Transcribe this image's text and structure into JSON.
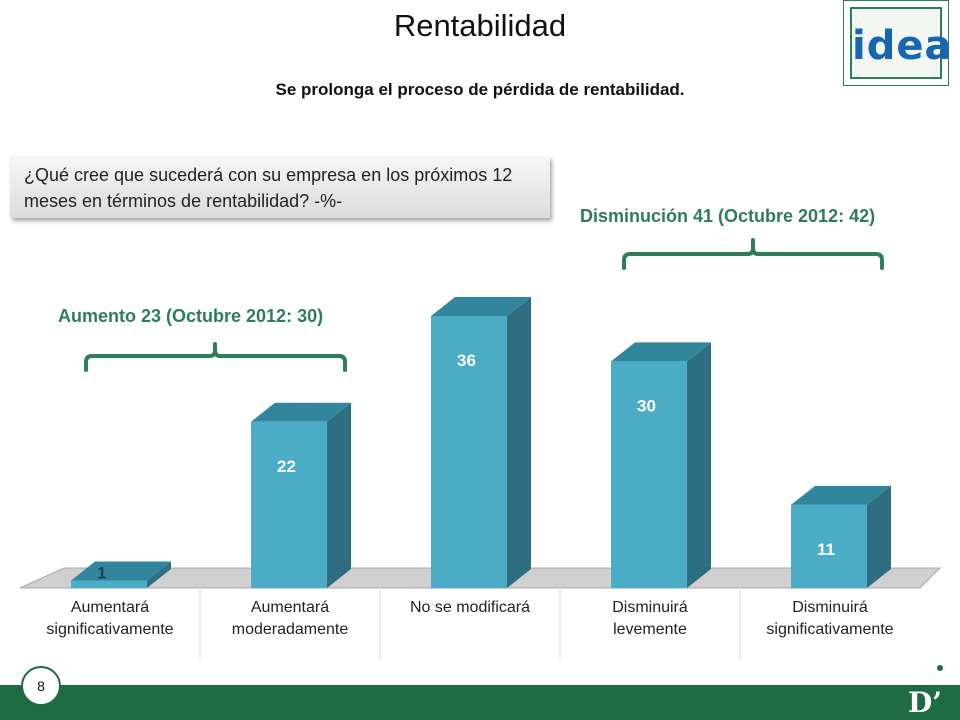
{
  "header": {
    "title": "Rentabilidad",
    "subtitle": "Se prolonga el proceso de pérdida de rentabilidad.",
    "logo_text": "idea"
  },
  "question": "¿Qué cree que sucederá con su empresa en los próximos 12 meses en términos de rentabilidad? -%-",
  "groups": {
    "increase_label": "Aumento 23 (Octubre 2012: 30)",
    "decrease_label": "Disminución 41 (Octubre 2012: 42)"
  },
  "footer": {
    "page_number": "8",
    "brand_mark": "D’"
  },
  "colors": {
    "bar_front": "#4bacc6",
    "bar_top": "#31859c",
    "bar_side": "#2e6e80",
    "accent": "#2e7d5a",
    "footer": "#1f6b43"
  },
  "chart_data": {
    "type": "bar",
    "title": "",
    "xlabel": "",
    "ylabel": "",
    "categories": [
      [
        "Aumentará",
        "significativamente"
      ],
      [
        "Aumentará",
        "moderadamente"
      ],
      [
        "No se modificará"
      ],
      [
        "Disminuirá",
        "levemente"
      ],
      [
        "Disminuirá",
        "significativamente"
      ]
    ],
    "values": [
      1,
      22,
      36,
      30,
      11
    ],
    "ylim": [
      0,
      36
    ],
    "grid": false,
    "legend": "none",
    "style": "3d-column"
  }
}
